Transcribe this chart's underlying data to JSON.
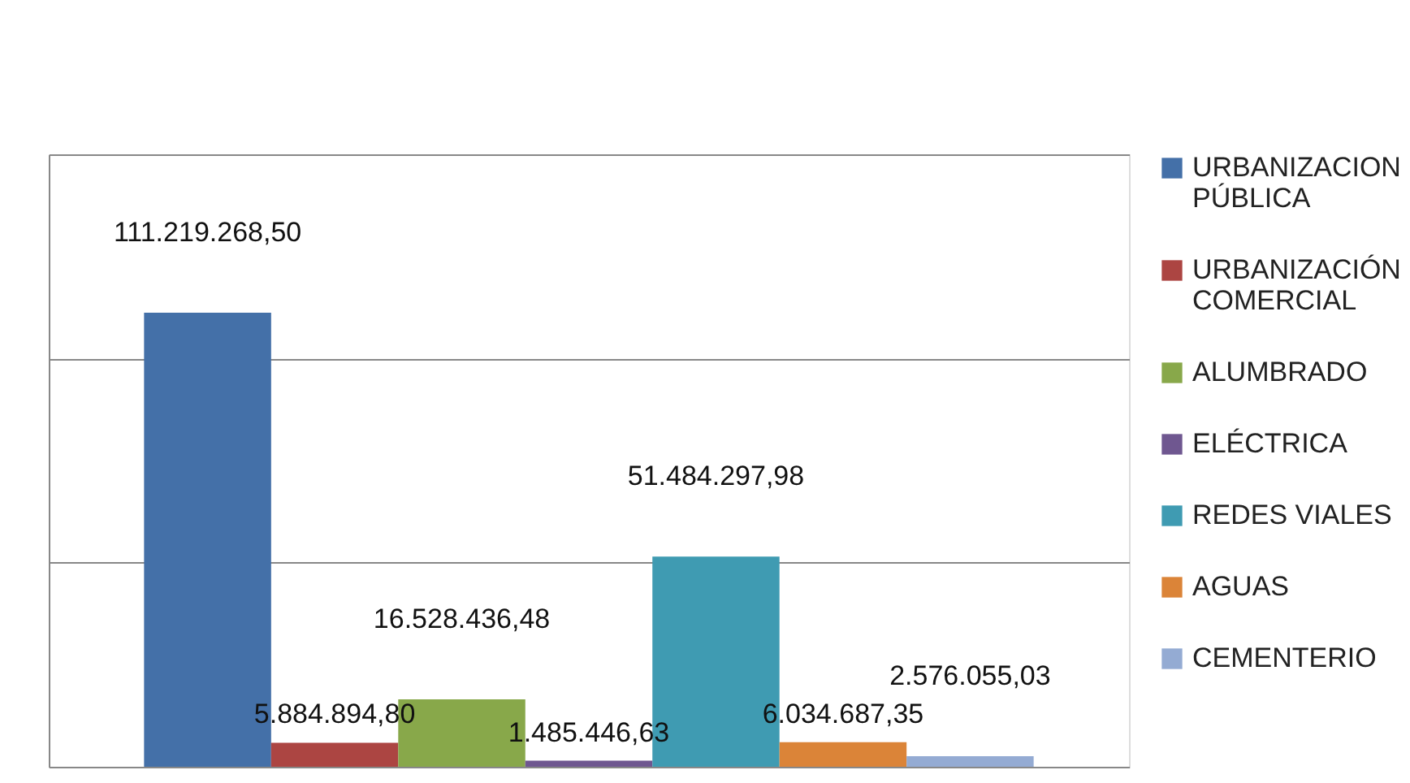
{
  "chart_data": {
    "type": "bar",
    "categories": [
      null
    ],
    "series": [
      {
        "name": "URBANIZACION PÚBLICA",
        "color": "#4470a8",
        "values": [
          111219268.5
        ],
        "value_labels": [
          "111.219.268,50"
        ]
      },
      {
        "name": "URBANIZACIÓN COMERCIAL",
        "color": "#ac4542",
        "values": [
          5884894.8
        ],
        "value_labels": [
          "5.884.894,80"
        ]
      },
      {
        "name": "ALUMBRADO",
        "color": "#88a84a",
        "values": [
          16528436.48
        ],
        "value_labels": [
          "16.528.436,48"
        ]
      },
      {
        "name": "ELÉCTRICA",
        "color": "#6f5790",
        "values": [
          1485446.63
        ],
        "value_labels": [
          "1.485.446,63"
        ]
      },
      {
        "name": "REDES VIALES",
        "color": "#3f9bb2",
        "values": [
          51484297.98
        ],
        "value_labels": [
          "51.484.297,98"
        ]
      },
      {
        "name": "AGUAS",
        "color": "#db8438",
        "values": [
          6034687.35
        ],
        "value_labels": [
          "6.034.687,35"
        ]
      },
      {
        "name": "CEMENTERIO",
        "color": "#94abd3",
        "values": [
          2576055.03
        ],
        "value_labels": [
          "2.576.055,03"
        ]
      }
    ],
    "ylim": [
      0,
      150000000
    ],
    "yticks": [
      {
        "value": 0,
        "label": null
      },
      {
        "value": 50000000,
        "label": null
      },
      {
        "value": 100000000,
        "label": null
      },
      {
        "value": 150000000,
        "label": null
      }
    ],
    "grid": "y",
    "tick_labels": false,
    "legend": "right"
  }
}
